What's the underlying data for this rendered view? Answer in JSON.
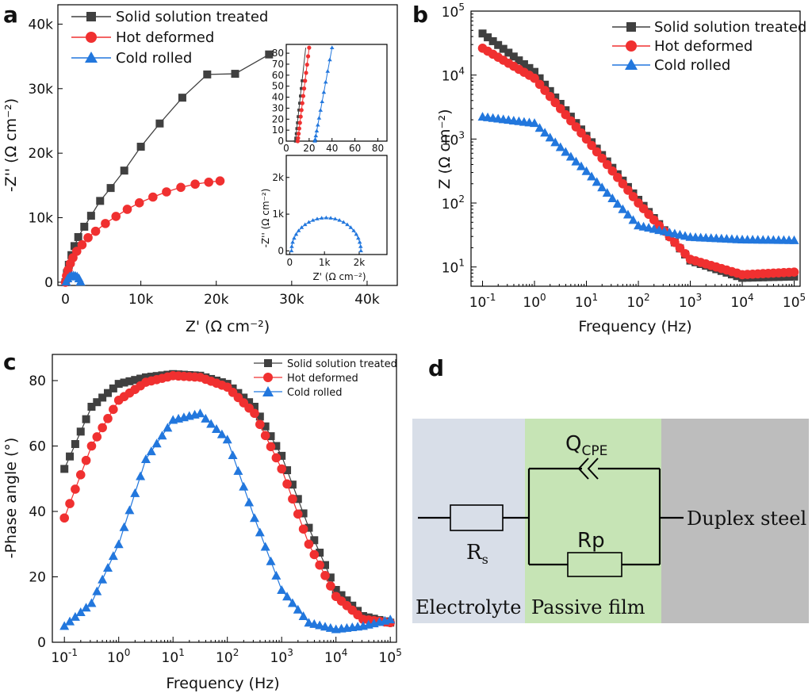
{
  "figure": {
    "panels": [
      "a",
      "b",
      "c",
      "d"
    ]
  },
  "colors": {
    "solid": "#404040",
    "hot": "#f03030",
    "cold": "#2277dd",
    "electrolyte_bg": "#d8dee8",
    "film_bg": "#c6e4b5",
    "steel_bg": "#bdbdbd"
  },
  "chart_data": [
    {
      "id": "a",
      "type": "scatter",
      "xlabel": "Z' (Ω cm⁻²)",
      "ylabel": "-Z'' (Ω cm⁻²)",
      "xlim": [
        -1000,
        44000
      ],
      "ylim": [
        -500,
        43000
      ],
      "xticks": [
        "0",
        "10k",
        "20k",
        "30k",
        "40k"
      ],
      "yticks": [
        "0",
        "10k",
        "20k",
        "30k",
        "40k"
      ],
      "legend": [
        "Solid solution treated",
        "Hot deformed",
        "Cold rolled"
      ],
      "legend_position": "top-left",
      "series": [
        {
          "name": "Solid solution treated",
          "marker": "square",
          "x": [
            0,
            200,
            450,
            800,
            1200,
            1700,
            2500,
            3400,
            4600,
            6000,
            7800,
            10000,
            12500,
            15500,
            18800,
            22500,
            27000
          ],
          "y": [
            0,
            1400,
            2700,
            4200,
            5600,
            7000,
            8600,
            10300,
            12600,
            14600,
            17300,
            21000,
            24600,
            28600,
            32200,
            32300,
            35300
          ]
        },
        {
          "name": "Hot deformed",
          "marker": "circle",
          "x": [
            0,
            150,
            350,
            650,
            1000,
            1500,
            2200,
            3000,
            4000,
            5300,
            6700,
            8200,
            9800,
            11600,
            13400,
            15300,
            17200,
            19000,
            20500
          ],
          "y": [
            0,
            1000,
            1900,
            2900,
            3800,
            4800,
            5800,
            6900,
            7900,
            9100,
            10200,
            11300,
            12300,
            13200,
            14000,
            14700,
            15200,
            15500,
            15700
          ]
        },
        {
          "name": "Cold rolled",
          "marker": "triangle",
          "x": [
            100,
            300,
            550,
            800,
            1050,
            1300,
            1550,
            1800,
            2000
          ],
          "y": [
            100,
            600,
            900,
            1000,
            1050,
            1000,
            900,
            600,
            100
          ]
        }
      ],
      "inset_top": {
        "xticks": [
          "0",
          "20",
          "40",
          "60",
          "80"
        ],
        "yticks": [
          "0",
          "10",
          "20",
          "30",
          "40",
          "50",
          "60",
          "70",
          "80"
        ],
        "xlim": [
          0,
          88
        ],
        "ylim": [
          0,
          88
        ]
      },
      "inset_bottom": {
        "ylabel": "-Z'' (Ω cm⁻²)",
        "xlabel": "Z' (Ω cm⁻²)",
        "xticks": [
          "0",
          "1k",
          "2k"
        ],
        "yticks": [
          "0",
          "1k",
          "2k"
        ],
        "xlim": [
          -100,
          2800
        ],
        "ylim": [
          -100,
          2600
        ]
      }
    },
    {
      "id": "b",
      "type": "scatter",
      "xlabel": "Frequency (Hz)",
      "ylabel": "Z (Ω cm⁻²)",
      "xscale": "log",
      "yscale": "log",
      "xlim": [
        0.06,
        130000
      ],
      "ylim": [
        5,
        100000
      ],
      "xticks": [
        "10-1",
        "100",
        "101",
        "102",
        "103",
        "104",
        "105"
      ],
      "yticks": [
        "101",
        "102",
        "103",
        "104",
        "105"
      ],
      "legend": [
        "Solid solution treated",
        "Hot deformed",
        "Cold rolled"
      ],
      "legend_position": "top-right",
      "series": [
        {
          "name": "Solid solution treated",
          "marker": "square",
          "logx": [
            -1,
            0,
            1,
            2,
            3,
            4,
            5
          ],
          "logy": [
            4.65,
            4.05,
            3.05,
            2.05,
            1.1,
            0.83,
            0.85
          ]
        },
        {
          "name": "Hot deformed",
          "marker": "circle",
          "logx": [
            -1,
            0,
            1,
            2,
            3,
            4,
            5
          ],
          "logy": [
            4.42,
            3.95,
            3.0,
            2.0,
            1.12,
            0.88,
            0.92
          ]
        },
        {
          "name": "Cold rolled",
          "marker": "triangle",
          "logx": [
            -1,
            0,
            1,
            2,
            3,
            4,
            5
          ],
          "logy": [
            3.35,
            3.25,
            2.5,
            1.65,
            1.47,
            1.43,
            1.42
          ]
        }
      ]
    },
    {
      "id": "c",
      "type": "scatter",
      "xlabel": "Frequency (Hz)",
      "ylabel": "-Phase angle (°)",
      "xscale": "log",
      "xlim": [
        0.06,
        130000
      ],
      "ylim": [
        0,
        88
      ],
      "xticks": [
        "10-1",
        "100",
        "101",
        "102",
        "103",
        "104",
        "105"
      ],
      "yticks": [
        "0",
        "20",
        "40",
        "60",
        "80"
      ],
      "legend": [
        "Solid solution treated",
        "Hot deformed",
        "Cold rolled"
      ],
      "legend_position": "top-right",
      "series": [
        {
          "name": "Solid solution treated",
          "marker": "square",
          "logx": [
            -1,
            -0.5,
            0,
            0.5,
            1,
            1.5,
            2,
            2.5,
            3,
            3.5,
            4,
            4.5,
            5
          ],
          "y": [
            53,
            72,
            79,
            81,
            82,
            81.5,
            79,
            72,
            57,
            35,
            16,
            8,
            6
          ]
        },
        {
          "name": "Hot deformed",
          "marker": "circle",
          "logx": [
            -1,
            -0.5,
            0,
            0.5,
            1,
            1.5,
            2,
            2.5,
            3,
            3.5,
            4,
            4.5,
            5
          ],
          "y": [
            38,
            60,
            74,
            79.5,
            81.5,
            81,
            78,
            70,
            53,
            30,
            14,
            7,
            6
          ]
        },
        {
          "name": "Cold rolled",
          "marker": "triangle",
          "logx": [
            -1,
            -0.5,
            0,
            0.5,
            1,
            1.5,
            2,
            2.5,
            3,
            3.5,
            4,
            4.5,
            5
          ],
          "y": [
            5,
            12,
            30,
            56,
            68,
            70,
            62,
            38,
            16,
            6,
            4,
            5,
            7
          ]
        }
      ]
    }
  ],
  "circuit": {
    "r_s": "R",
    "r_s_sub": "s",
    "q_cpe": "Q",
    "q_cpe_sub": "CPE",
    "r_p": "Rp",
    "electrolyte": "Electrolyte",
    "passive_film": "Passive film",
    "duplex_steel": "Duplex steel"
  }
}
